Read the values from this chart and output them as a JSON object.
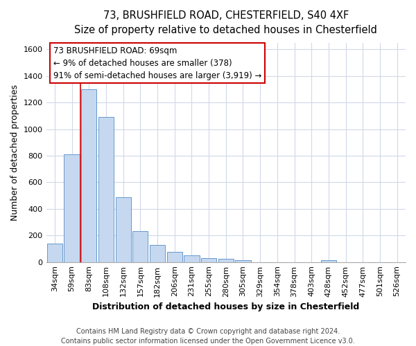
{
  "title_line1": "73, BRUSHFIELD ROAD, CHESTERFIELD, S40 4XF",
  "title_line2": "Size of property relative to detached houses in Chesterfield",
  "xlabel": "Distribution of detached houses by size in Chesterfield",
  "ylabel": "Number of detached properties",
  "categories": [
    "34sqm",
    "59sqm",
    "83sqm",
    "108sqm",
    "132sqm",
    "157sqm",
    "182sqm",
    "206sqm",
    "231sqm",
    "255sqm",
    "280sqm",
    "305sqm",
    "329sqm",
    "354sqm",
    "378sqm",
    "403sqm",
    "428sqm",
    "452sqm",
    "477sqm",
    "501sqm",
    "526sqm"
  ],
  "values": [
    140,
    810,
    1300,
    1090,
    490,
    235,
    130,
    75,
    50,
    30,
    22,
    12,
    0,
    0,
    0,
    0,
    12,
    0,
    0,
    0,
    0
  ],
  "bar_color": "#c5d8f0",
  "bar_edge_color": "#6699cc",
  "vline_x": 1.5,
  "vline_color": "#cc0000",
  "annotation_text": "73 BRUSHFIELD ROAD: 69sqm\n← 9% of detached houses are smaller (378)\n91% of semi-detached houses are larger (3,919) →",
  "annotation_box_color": "#ffffff",
  "annotation_box_edge_color": "#cc0000",
  "ylim": [
    0,
    1650
  ],
  "yticks": [
    0,
    200,
    400,
    600,
    800,
    1000,
    1200,
    1400,
    1600
  ],
  "footer_line1": "Contains HM Land Registry data © Crown copyright and database right 2024.",
  "footer_line2": "Contains public sector information licensed under the Open Government Licence v3.0.",
  "background_color": "#ffffff",
  "grid_color": "#d0d8e8",
  "title1_fontsize": 10.5,
  "title2_fontsize": 9.5,
  "axis_label_fontsize": 9,
  "tick_fontsize": 8,
  "footer_fontsize": 7.0,
  "annot_fontsize": 8.5
}
